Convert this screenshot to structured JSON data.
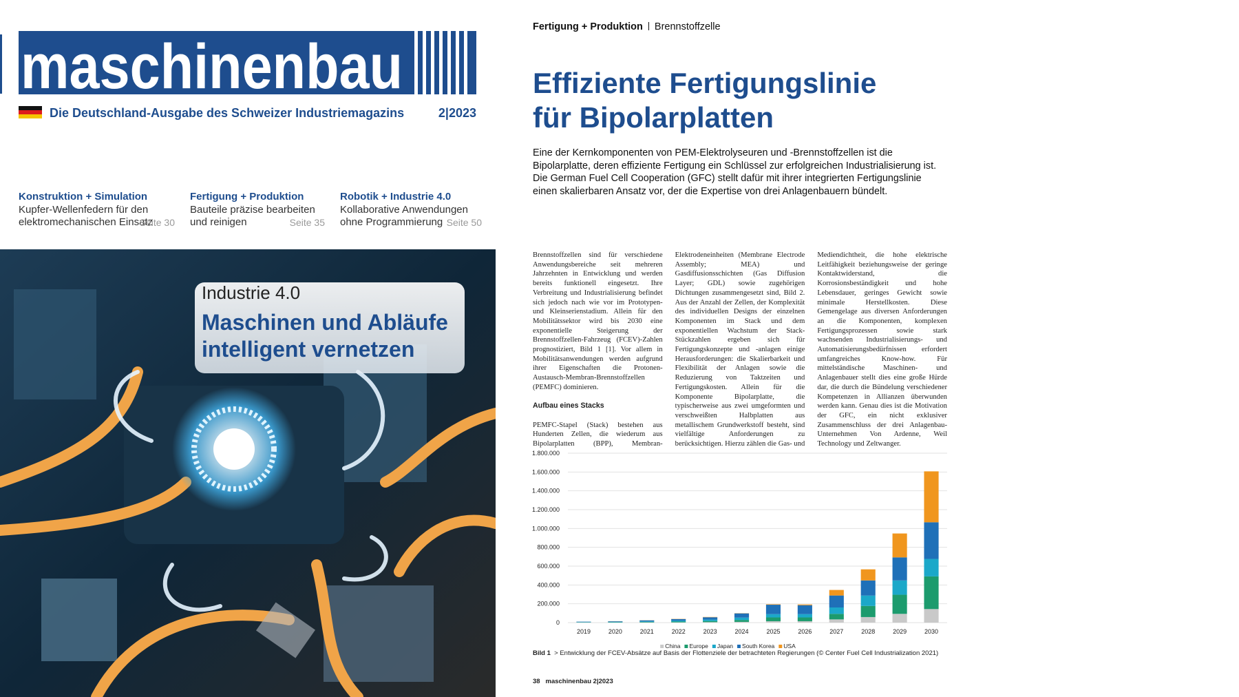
{
  "cover": {
    "masthead": "maschinenbau",
    "tagline": "Die Deutschland-Ausgabe des Schweizer Industriemagazins",
    "issue": "2|2023",
    "teasers": [
      {
        "category": "Konstruktion + Simulation",
        "lines": [
          "Kupfer-Wellenfedern für den",
          "elektromechanischen Einsatz"
        ],
        "page": "Seite 30"
      },
      {
        "category": "Fertigung + Produktion",
        "lines": [
          "Bauteile präzise bearbeiten",
          "und reinigen"
        ],
        "page": "Seite 35"
      },
      {
        "category": "Robotik + Industrie 4.0",
        "lines": [
          "Kollaborative Anwendungen",
          "ohne Programmierung"
        ],
        "page": "Seite 50"
      }
    ],
    "feature": {
      "kicker": "Industrie 4.0",
      "headline": [
        "Maschinen und Abläufe",
        "intelligent vernetzen"
      ]
    }
  },
  "article": {
    "section": "Fertigung + Produktion",
    "topic": "Brennstoffzelle",
    "title": [
      "Effiziente Fertigungslinie",
      "für Bipolarplatten"
    ],
    "lead": "Eine der Kernkomponenten von PEM-Elektrolyseuren und -Brennstoffzellen ist die Bipolarplatte, deren effiziente Fertigung ein Schlüssel zur erfolgreichen Industrialisierung ist. Die German Fuel Cell Cooperation (GFC) stellt dafür mit ihrer integrierten Fertigungslinie einen skalierbaren Ansatz vor, der die Expertise von drei Anlagenbauern bündelt.",
    "body": [
      {
        "text": "Brennstoffzellen sind für verschiedene Anwendungsbereiche seit mehreren Jahrzehnten in Entwicklung und werden bereits funktionell eingesetzt. Ihre Verbreitung und Industrialisierung befindet sich jedoch nach wie vor im Prototypen- und Kleinserienstadium. Allein für den Mobilitätssektor wird bis 2030 eine exponentielle Steigerung der Brennstoffzellen-Fahrzeug (FCEV)-Zahlen prognostiziert, Bild 1 [1]. Vor allem in Mobilitätsanwendungen werden aufgrund ihrer Eigenschaften die Protonen-Austausch-Membran-Brennstoffzellen (PEMFC) dominieren."
      },
      {
        "heading": "Aufbau eines Stacks"
      },
      {
        "text": "PEMFC-Stapel (Stack) bestehen aus Hunderten Zellen, die wiederum aus Bipolarplatten (BPP), Membran-Elektrodeneinheiten (Membrane Electrode Assembly; MEA) und Gasdiffusionsschichten (Gas Diffusion Layer; GDL) sowie zugehörigen Dichtungen zusammengesetzt sind, Bild 2. Aus der Anzahl der Zellen, der Komplexität des individuellen Designs der einzelnen Komponenten im Stack und dem exponentiellen Wachstum der Stack-Stückzahlen ergeben sich für Fertigungskonzepte und -anlagen einige Herausforderungen: die Skalierbarkeit und Flexibilität der Anlagen sowie die Reduzierung von Taktzeiten und Fertigungskosten. Allein für die Komponente Bipolarplatte, die typischerweise aus zwei umgeformten und verschweißten Halbplatten aus metallischem Grundwerkstoff besteht, sind vielfältige Anforderungen zu berücksichtigen. Hierzu zählen die Gas- und Mediendichtheit, die hohe elektrische Leitfähigkeit beziehungsweise der geringe Kontaktwiderstand, die Korrosionsbeständigkeit und hohe Lebensdauer, geringes Gewicht sowie minimale Herstellkosten. Diese Gemengelage aus diversen Anforderungen an die Komponenten, komplexen Fertigungsprozessen sowie stark wachsenden Industrialisierungs- und Automatisierungsbedürfnissen erfordert umfangreiches Know-how. Für mittelständische Maschinen- und Anlagenbauer stellt dies eine große Hürde dar, die durch die Bündelung verschiedener Kompetenzen in Allianzen überwunden werden kann. Genau dies ist die Motivation der GFC, ein nicht exklusiver Zusammenschluss der drei Anlagenbau-Unternehmen Von Ardenne, Weil Technology und Zeltwanger."
      }
    ],
    "figure": {
      "label": "Bild 1",
      "caption": "> Entwicklung der FCEV-Absätze auf Basis der Flottenziele der betrachteten Regierungen (© Center Fuel Cell Industrialization 2021)"
    },
    "footer": {
      "page": "38",
      "magazine": "maschinenbau",
      "issue": "2|2023"
    }
  },
  "chart_data": {
    "type": "bar",
    "stacked": true,
    "categories": [
      "2019",
      "2020",
      "2021",
      "2022",
      "2023",
      "2024",
      "2025",
      "2026",
      "2027",
      "2028",
      "2029",
      "2030"
    ],
    "series": [
      {
        "name": "China",
        "color": "#c9c9c9",
        "values": [
          1000,
          1000,
          2000,
          3000,
          5000,
          8000,
          15000,
          15000,
          34000,
          59000,
          93000,
          144000
        ]
      },
      {
        "name": "Europe",
        "color": "#1c9b6d",
        "values": [
          2000,
          3000,
          5000,
          8000,
          12000,
          20000,
          40000,
          40000,
          59000,
          118000,
          203000,
          347000
        ]
      },
      {
        "name": "Japan",
        "color": "#1ba8c9",
        "values": [
          3000,
          4000,
          6000,
          10000,
          15000,
          25000,
          35000,
          35000,
          68000,
          110000,
          152000,
          186000
        ]
      },
      {
        "name": "South Korea",
        "color": "#1f70b8",
        "values": [
          4000,
          6000,
          11000,
          17000,
          25000,
          45000,
          100000,
          95000,
          127000,
          161000,
          245000,
          389000
        ]
      },
      {
        "name": "USA",
        "color": "#f0961e",
        "values": [
          0,
          1000,
          1000,
          2000,
          3000,
          2000,
          5000,
          8000,
          59000,
          118000,
          254000,
          541000
        ]
      }
    ],
    "ylim": [
      0,
      1800000
    ],
    "yticks": [
      0,
      {
        "value": 200000,
        "label": "200.000"
      },
      {
        "value": 400000,
        "label": "400.000"
      },
      {
        "value": 600000,
        "label": "600.000"
      },
      {
        "value": 800000,
        "label": "800.000"
      },
      {
        "value": 1000000,
        "label": "1.000.000"
      },
      {
        "value": 1200000,
        "label": "1.200.000"
      },
      {
        "value": 1400000,
        "label": "1.400.000"
      },
      {
        "value": 1600000,
        "label": "1.600.000"
      },
      {
        "value": 1800000,
        "label": "1.800.000"
      }
    ],
    "grid": true,
    "legend": "bottom"
  }
}
